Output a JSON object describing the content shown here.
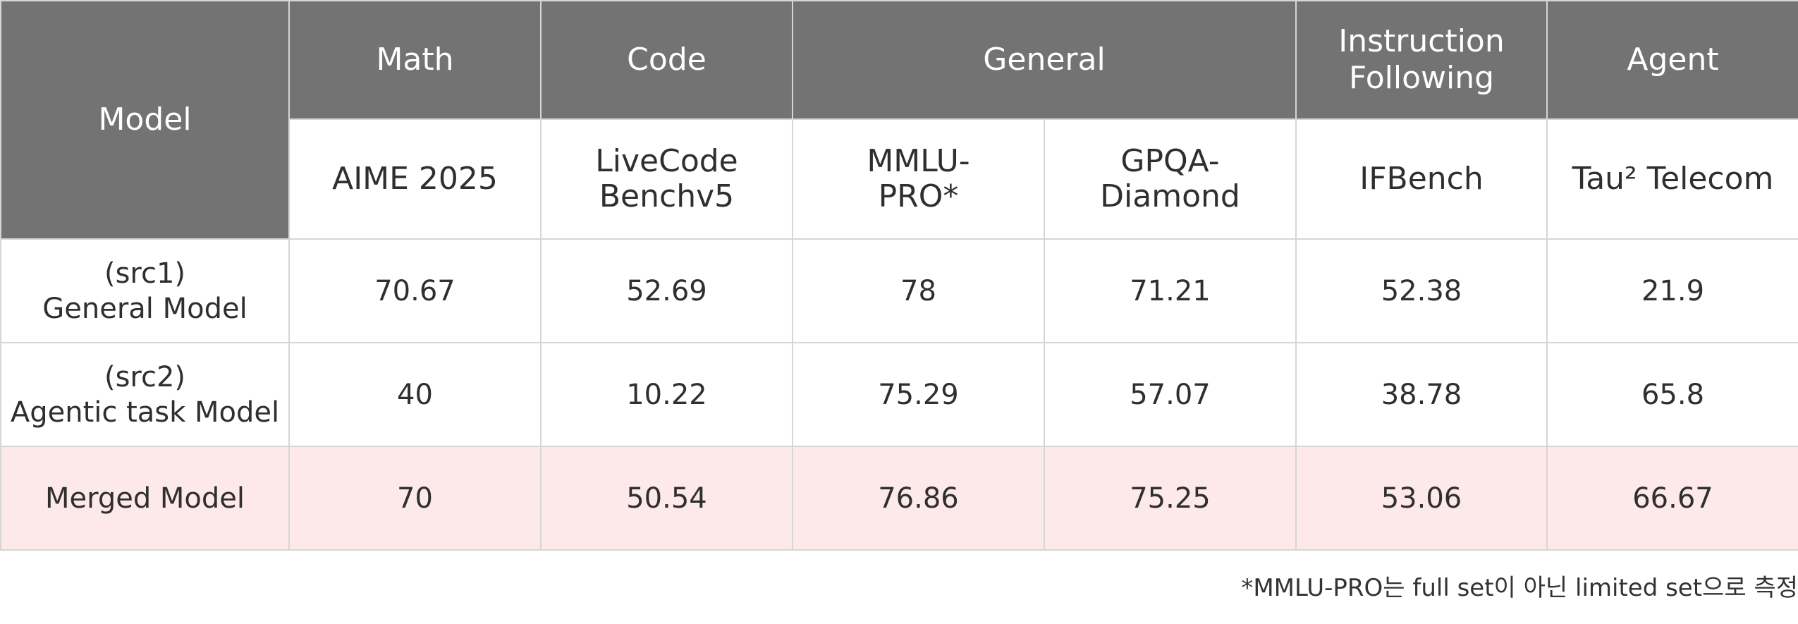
{
  "table": {
    "model_header": "Model",
    "groups": [
      {
        "label_lines": [
          "Math"
        ]
      },
      {
        "label_lines": [
          "Code"
        ]
      },
      {
        "label_lines": [
          "General"
        ]
      },
      {
        "label_lines": [
          "Instruction",
          "Following"
        ]
      },
      {
        "label_lines": [
          "Agent"
        ]
      }
    ],
    "benchmarks": [
      {
        "lines": [
          "AIME 2025"
        ]
      },
      {
        "lines": [
          "LiveCode",
          "Benchv5"
        ]
      },
      {
        "lines": [
          "MMLU-",
          "PRO*"
        ]
      },
      {
        "lines": [
          "GPQA-",
          "Diamond"
        ]
      },
      {
        "lines": [
          "IFBench"
        ]
      },
      {
        "lines": [
          "Tau² Telecom"
        ]
      }
    ],
    "rows": [
      {
        "model_lines": [
          "(src1)",
          "General Model"
        ],
        "values": [
          "70.67",
          "52.69",
          "78",
          "71.21",
          "52.38",
          "21.9"
        ],
        "bold": [
          true,
          true,
          true,
          false,
          false,
          false
        ]
      },
      {
        "model_lines": [
          "(src2)",
          "Agentic task Model"
        ],
        "values": [
          "40",
          "10.22",
          "75.29",
          "57.07",
          "38.78",
          "65.8"
        ],
        "bold": [
          false,
          false,
          false,
          false,
          false,
          false
        ]
      },
      {
        "model_lines": [
          "Merged Model"
        ],
        "values": [
          "70",
          "50.54",
          "76.86",
          "75.25",
          "53.06",
          "66.67"
        ],
        "bold": [
          false,
          false,
          false,
          true,
          true,
          true
        ]
      }
    ]
  },
  "footnote": "*MMLU-PRO는 full set이 아닌 limited set으로 측정",
  "colors": {
    "header_bg": "#737373",
    "header_text": "#ffffff",
    "merged_row_bg": "#fde8ea",
    "border": "#d6d6d6"
  }
}
